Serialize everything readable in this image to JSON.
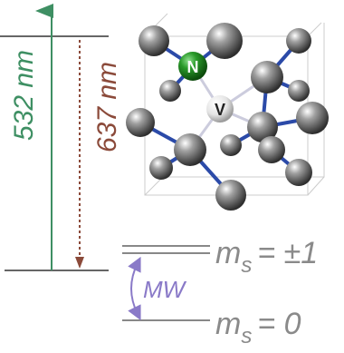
{
  "energy_diagram": {
    "excitation": "532 nm",
    "emission": "637 nm",
    "defect_labels": {
      "nitrogen": "N",
      "vacancy": "V"
    },
    "microwave": "MW",
    "levels": [
      {
        "symbol": "m",
        "subscript": "s",
        "value": "= ±1"
      },
      {
        "symbol": "m",
        "subscript": "s",
        "value": "= 0"
      }
    ]
  }
}
